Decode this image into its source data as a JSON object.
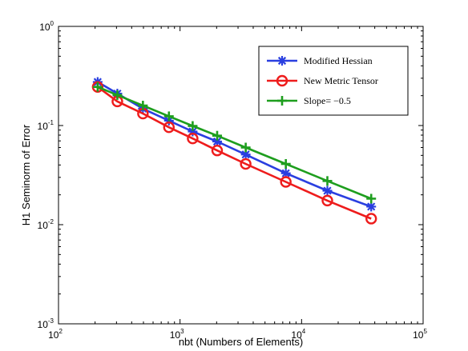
{
  "chart_data": {
    "type": "line",
    "x_scale": "log",
    "y_scale": "log",
    "xlabel": "nbt (Numbers of Elements)",
    "ylabel": "H1 Seminorm of Error",
    "xlim": [
      100,
      100000
    ],
    "ylim": [
      0.001,
      1
    ],
    "x_ticks": [
      {
        "base": "10",
        "exp": "2"
      },
      {
        "base": "10",
        "exp": "3"
      },
      {
        "base": "10",
        "exp": "4"
      },
      {
        "base": "10",
        "exp": "5"
      }
    ],
    "y_ticks": [
      {
        "base": "10",
        "exp": "0"
      },
      {
        "base": "10",
        "exp": "-1"
      },
      {
        "base": "10",
        "exp": "-2"
      },
      {
        "base": "10",
        "exp": "-3"
      }
    ],
    "grid": false,
    "legend_position": "top-right",
    "series": [
      {
        "name": "Modified Hessian",
        "color": "#2a3fe0",
        "marker": "asterisk",
        "x": [
          210,
          305,
          495,
          810,
          1270,
          2020,
          3470,
          7420,
          16300,
          37400
        ],
        "y": [
          0.275,
          0.21,
          0.148,
          0.112,
          0.087,
          0.069,
          0.051,
          0.033,
          0.022,
          0.0152
        ]
      },
      {
        "name": "New Metric Tensor",
        "color": "#ee1c1c",
        "marker": "circle",
        "x": [
          210,
          305,
          495,
          810,
          1270,
          2020,
          3470,
          7420,
          16300,
          37400
        ],
        "y": [
          0.245,
          0.175,
          0.132,
          0.096,
          0.074,
          0.056,
          0.041,
          0.027,
          0.0175,
          0.0115
        ]
      },
      {
        "name": "Slope= −0.5",
        "color": "#1e9e1e",
        "marker": "plus",
        "x": [
          210,
          305,
          495,
          810,
          1270,
          2020,
          3470,
          7420,
          16300,
          37400
        ],
        "y": [
          0.245,
          0.203,
          0.159,
          0.124,
          0.099,
          0.079,
          0.06,
          0.041,
          0.0276,
          0.0183
        ]
      }
    ]
  }
}
